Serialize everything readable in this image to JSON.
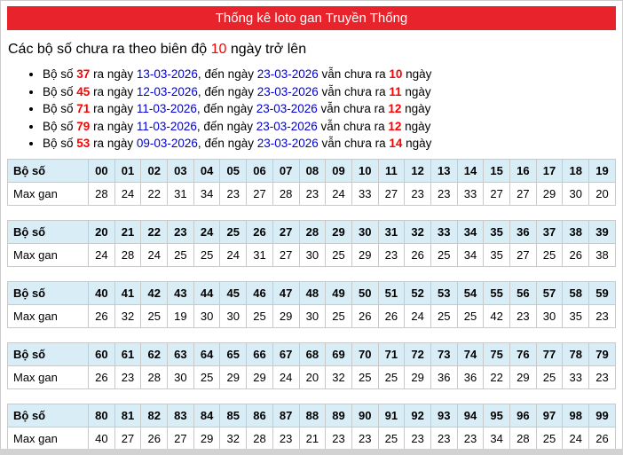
{
  "page": {
    "title": "Thống kê loto gan Truyền Thống",
    "heading": {
      "pre": "Các bộ số chưa ra theo biên độ ",
      "threshold": "10",
      "post": " ngày trở lên"
    }
  },
  "colors": {
    "title_bar_bg": "#e8232b",
    "title_text": "#ffffff",
    "accent_red": "#ff0000",
    "date_blue": "#0000d6",
    "table_header_bg": "#d9edf7",
    "table_border": "#c9c9c9"
  },
  "gan_list": {
    "t_boso": "Bộ số",
    "t_ra_ngay": "ra ngày",
    "t_den_ngay": ", đến ngày",
    "t_chua_ra": "vẫn chưa ra",
    "t_ngay": "ngày",
    "items": [
      {
        "number": "37",
        "from": "13-03-2026",
        "to": "23-03-2026",
        "days": "10"
      },
      {
        "number": "45",
        "from": "12-03-2026",
        "to": "23-03-2026",
        "days": "11"
      },
      {
        "number": "71",
        "from": "11-03-2026",
        "to": "23-03-2026",
        "days": "12"
      },
      {
        "number": "79",
        "from": "11-03-2026",
        "to": "23-03-2026",
        "days": "12"
      },
      {
        "number": "53",
        "from": "09-03-2026",
        "to": "23-03-2026",
        "days": "14"
      }
    ]
  },
  "tables": {
    "row_label_numbers": "Bộ số",
    "row_label_maxgan": "Max gan",
    "groups": [
      {
        "numbers": [
          "00",
          "01",
          "02",
          "03",
          "04",
          "05",
          "06",
          "07",
          "08",
          "09",
          "10",
          "11",
          "12",
          "13",
          "14",
          "15",
          "16",
          "17",
          "18",
          "19"
        ],
        "maxgan": [
          "28",
          "24",
          "22",
          "31",
          "34",
          "23",
          "27",
          "28",
          "23",
          "24",
          "33",
          "27",
          "23",
          "23",
          "33",
          "27",
          "27",
          "29",
          "30",
          "20"
        ]
      },
      {
        "numbers": [
          "20",
          "21",
          "22",
          "23",
          "24",
          "25",
          "26",
          "27",
          "28",
          "29",
          "30",
          "31",
          "32",
          "33",
          "34",
          "35",
          "36",
          "37",
          "38",
          "39"
        ],
        "maxgan": [
          "24",
          "28",
          "24",
          "25",
          "25",
          "24",
          "31",
          "27",
          "30",
          "25",
          "29",
          "23",
          "26",
          "25",
          "34",
          "35",
          "27",
          "25",
          "26",
          "38"
        ]
      },
      {
        "numbers": [
          "40",
          "41",
          "42",
          "43",
          "44",
          "45",
          "46",
          "47",
          "48",
          "49",
          "50",
          "51",
          "52",
          "53",
          "54",
          "55",
          "56",
          "57",
          "58",
          "59"
        ],
        "maxgan": [
          "26",
          "32",
          "25",
          "19",
          "30",
          "30",
          "25",
          "29",
          "30",
          "25",
          "26",
          "26",
          "24",
          "25",
          "25",
          "42",
          "23",
          "30",
          "35",
          "23"
        ]
      },
      {
        "numbers": [
          "60",
          "61",
          "62",
          "63",
          "64",
          "65",
          "66",
          "67",
          "68",
          "69",
          "70",
          "71",
          "72",
          "73",
          "74",
          "75",
          "76",
          "77",
          "78",
          "79"
        ],
        "maxgan": [
          "26",
          "23",
          "28",
          "30",
          "25",
          "29",
          "29",
          "24",
          "20",
          "32",
          "25",
          "25",
          "29",
          "36",
          "36",
          "22",
          "29",
          "25",
          "33",
          "23"
        ]
      },
      {
        "numbers": [
          "80",
          "81",
          "82",
          "83",
          "84",
          "85",
          "86",
          "87",
          "88",
          "89",
          "90",
          "91",
          "92",
          "93",
          "94",
          "95",
          "96",
          "97",
          "98",
          "99"
        ],
        "maxgan": [
          "40",
          "27",
          "26",
          "27",
          "29",
          "32",
          "28",
          "23",
          "21",
          "23",
          "23",
          "25",
          "23",
          "23",
          "23",
          "34",
          "28",
          "25",
          "24",
          "26"
        ]
      }
    ]
  }
}
